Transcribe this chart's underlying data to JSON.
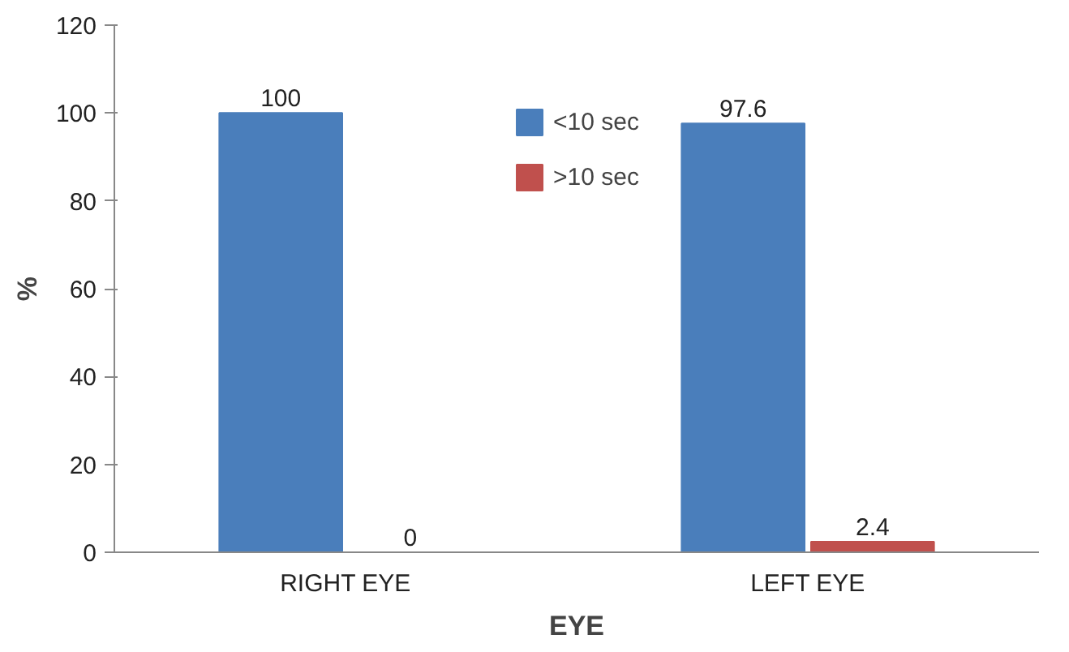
{
  "chart_data": {
    "type": "bar",
    "xlabel": "EYE",
    "ylabel": "%",
    "categories": [
      "RIGHT EYE",
      "LEFT EYE"
    ],
    "series": [
      {
        "name": "<10 sec",
        "color": "#4a7ebb",
        "values": [
          100,
          97.6
        ]
      },
      {
        "name": ">10 sec",
        "color": "#c0504d",
        "values": [
          0,
          2.4
        ]
      }
    ],
    "ylim": [
      0,
      120
    ],
    "yticks": [
      0,
      20,
      40,
      60,
      80,
      100,
      120
    ],
    "data_labels": true,
    "legend": "top",
    "grid": false
  }
}
